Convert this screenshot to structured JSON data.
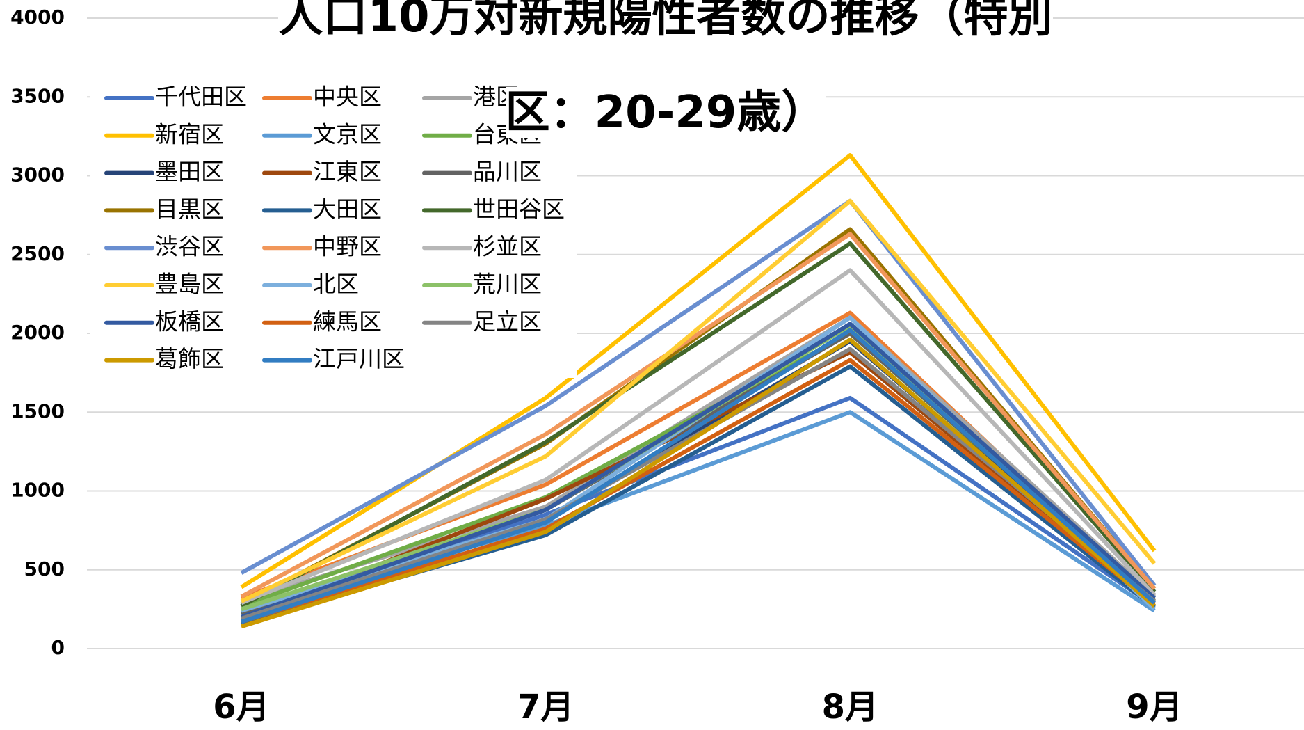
{
  "chart_data": {
    "type": "line",
    "title": "人口10万対新規陽性者数の推移（特別区：20-29歳）",
    "categories": [
      "6月",
      "7月",
      "8月",
      "9月"
    ],
    "ylim": [
      0,
      4000
    ],
    "yticks": [
      0,
      500,
      1000,
      1500,
      2000,
      2500,
      3000,
      3500,
      4000
    ],
    "grid": true,
    "legend": "upper-left",
    "series": [
      {
        "name": "千代田区",
        "color": "#4472c4",
        "values": [
          200,
          850,
          1590,
          270
        ]
      },
      {
        "name": "中央区",
        "color": "#ed7d31",
        "values": [
          320,
          1040,
          2130,
          300
        ]
      },
      {
        "name": "港区",
        "color": "#a5a5a5",
        "values": [
          300,
          900,
          2100,
          330
        ]
      },
      {
        "name": "新宿区",
        "color": "#ffc000",
        "values": [
          390,
          1590,
          3130,
          620
        ]
      },
      {
        "name": "文京区",
        "color": "#5b9bd5",
        "values": [
          230,
          780,
          1500,
          240
        ]
      },
      {
        "name": "台東区",
        "color": "#70ad47",
        "values": [
          270,
          960,
          2000,
          300
        ]
      },
      {
        "name": "墨田区",
        "color": "#264478",
        "values": [
          180,
          820,
          1950,
          290
        ]
      },
      {
        "name": "江東区",
        "color": "#9e480e",
        "values": [
          190,
          950,
          1880,
          280
        ]
      },
      {
        "name": "品川区",
        "color": "#636363",
        "values": [
          220,
          880,
          2000,
          310
        ]
      },
      {
        "name": "目黒区",
        "color": "#997300",
        "values": [
          280,
          1300,
          2660,
          380
        ]
      },
      {
        "name": "大田区",
        "color": "#255e91",
        "values": [
          160,
          720,
          1790,
          260
        ]
      },
      {
        "name": "世田谷区",
        "color": "#43682b",
        "values": [
          270,
          1310,
          2570,
          360
        ]
      },
      {
        "name": "渋谷区",
        "color": "#698ed0",
        "values": [
          480,
          1540,
          2840,
          400
        ]
      },
      {
        "name": "中野区",
        "color": "#f1975a",
        "values": [
          330,
          1360,
          2630,
          380
        ]
      },
      {
        "name": "杉並区",
        "color": "#b7b7b7",
        "values": [
          290,
          1070,
          2400,
          340
        ]
      },
      {
        "name": "豊島区",
        "color": "#ffcd33",
        "values": [
          300,
          1220,
          2840,
          540
        ]
      },
      {
        "name": "北区",
        "color": "#7cafdd",
        "values": [
          240,
          820,
          2100,
          250
        ]
      },
      {
        "name": "荒川区",
        "color": "#8cc168",
        "values": [
          250,
          880,
          2050,
          300
        ]
      },
      {
        "name": "板橋区",
        "color": "#335aa1",
        "values": [
          200,
          880,
          2060,
          320
        ]
      },
      {
        "name": "練馬区",
        "color": "#d26012",
        "values": [
          170,
          760,
          1830,
          280
        ]
      },
      {
        "name": "足立区",
        "color": "#848484",
        "values": [
          190,
          820,
          1900,
          300
        ]
      },
      {
        "name": "葛飾区",
        "color": "#cc9a00",
        "values": [
          140,
          740,
          1960,
          270
        ]
      },
      {
        "name": "江戸川区",
        "color": "#327dc2",
        "values": [
          170,
          800,
          2020,
          290
        ]
      }
    ]
  }
}
